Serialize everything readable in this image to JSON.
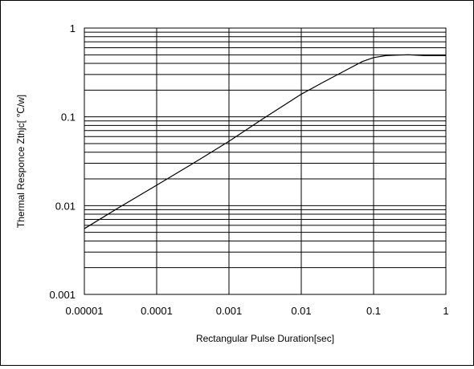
{
  "chart_data": {
    "type": "line",
    "x_scale": "log",
    "y_scale": "log",
    "xlim": [
      1e-05,
      1
    ],
    "ylim": [
      0.001,
      1
    ],
    "xlabel": "Rectangular Pulse Duration[sec]",
    "ylabel": "Thermal Responce Zthjc[ ℃/w]",
    "x_ticks": [
      "0.00001",
      "0.0001",
      "0.001",
      "0.01",
      "0.1",
      "1"
    ],
    "y_ticks": [
      "1",
      "0.1",
      "0.01",
      "0.001"
    ],
    "grid": true,
    "series": [
      {
        "x": [
          1e-05,
          3e-05,
          0.0001,
          0.0003,
          0.001,
          0.003,
          0.01,
          0.02,
          0.04,
          0.07,
          0.1,
          0.15,
          0.2,
          0.3,
          0.5,
          1
        ],
        "values": [
          0.0055,
          0.0095,
          0.017,
          0.029,
          0.053,
          0.096,
          0.18,
          0.245,
          0.33,
          0.42,
          0.465,
          0.49,
          0.495,
          0.5,
          0.49,
          0.49
        ]
      }
    ]
  }
}
